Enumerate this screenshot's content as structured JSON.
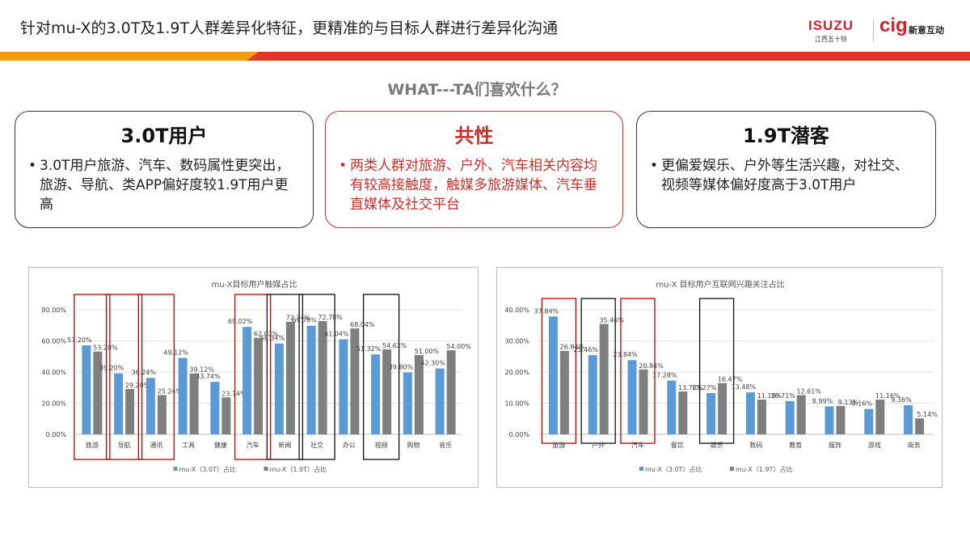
{
  "header": {
    "title": "针对mu-X的3.0T及1.9T人群差异化特征，更精准的与目标人群进行差异化沟通",
    "logo_isuzu": "ISUZU",
    "logo_isuzu_sub": "江西五十铃",
    "logo_cig": "cig",
    "logo_cig_sub": "新意互动"
  },
  "subtitle": "WHAT---TA们喜欢什么？",
  "colors": {
    "accent_red": "#e3342b",
    "accent_orange": "#f39c12",
    "series_30t": "#5b9bd5",
    "series_19t": "#7f7f7f"
  },
  "cards": [
    {
      "title": "3.0T用户",
      "bullet": "•",
      "text": "3.0T用户旅游、汽车、数码属性更突出，旅游、导航、类APP偏好度较1.9T用户更高"
    },
    {
      "title": "共性",
      "bullet": "•",
      "text": "两类人群对旅游、户外、汽车相关内容均有较高接触度，触媒多旅游媒体、汽车垂直媒体及社交平台"
    },
    {
      "title": "1.9T潜客",
      "bullet": "•",
      "text": "更偏爱娱乐、户外等生活兴趣，对社交、视频等媒体偏好度高于3.0T用户"
    }
  ],
  "chart_data": [
    {
      "type": "bar",
      "title": "mu-X目标用户触媒占比",
      "categories": [
        "旅游",
        "导航",
        "通讯",
        "工具",
        "健康",
        "汽车",
        "新闻",
        "社交",
        "办公",
        "视频",
        "购物",
        "音乐"
      ],
      "series": [
        {
          "name": "mu-X（3.0T）占比",
          "values": [
            57.2,
            39.2,
            36.24,
            49.12,
            33.74,
            69.02,
            58.34,
            69.78,
            61.04,
            51.32,
            39.8,
            42.3
          ],
          "labels": [
            "57.20%",
            "39.20%",
            "36.24%",
            "49.12%",
            "33.74%",
            "69.02%",
            "58.34%",
            "69.78%",
            "61.04%",
            "51.32%",
            "39.80%",
            "42.30%"
          ]
        },
        {
          "name": "mu-X（1.9T）占比",
          "values": [
            53.2,
            29.2,
            25.24,
            39.12,
            23.74,
            62.02,
            72.34,
            72.78,
            68.04,
            54.62,
            51.0,
            54.0
          ],
          "labels": [
            "53.20%",
            "29.20%",
            "25.24%",
            "39.12%",
            "23.74%",
            "62.02%",
            "72.34%",
            "72.78%",
            "68.04%",
            "54.62%",
            "51.00%",
            "54.00%"
          ]
        }
      ],
      "y_ticks": [
        "0.00%",
        "20.00%",
        "40.00%",
        "60.00%",
        "80.00%"
      ],
      "ylim": [
        0,
        80
      ],
      "grid": true,
      "legend_position": "bottom",
      "highlight_red": [
        "旅游",
        "导航",
        "通讯",
        "汽车"
      ],
      "highlight_black": [
        "新闻",
        "社交",
        "视频"
      ],
      "xlabel": "",
      "ylabel": ""
    },
    {
      "type": "bar",
      "title": "mu-X 目标用户互联网兴趣关注占比",
      "categories": [
        "旅游",
        "户外",
        "汽车",
        "餐饮",
        "娱乐",
        "数码",
        "教育",
        "服饰",
        "游戏",
        "商务"
      ],
      "series": [
        {
          "name": "mu-X（3.0T）占比",
          "values": [
            37.84,
            25.46,
            23.84,
            17.28,
            13.27,
            13.48,
            10.71,
            8.99,
            8.16,
            9.36
          ],
          "labels": [
            "37.84%",
            "25.46%",
            "23.84%",
            "17.28%",
            "13.27%",
            "13.48%",
            "10.71%",
            "8.99%",
            "8.16%",
            "9.36%"
          ]
        },
        {
          "name": "mu-X（1.9T）占比",
          "values": [
            26.84,
            35.46,
            20.84,
            13.78,
            16.47,
            11.18,
            12.61,
            9.13,
            11.16,
            5.14
          ],
          "labels": [
            "26.84%",
            "35.46%",
            "20.84%",
            "13.78%",
            "16.47%",
            "11.18%",
            "12.61%",
            "9.13%",
            "11.16%",
            "5.14%"
          ]
        }
      ],
      "y_ticks": [
        "0.00%",
        "10.00%",
        "20.00%",
        "30.00%",
        "40.00%"
      ],
      "ylim": [
        0,
        40
      ],
      "grid": true,
      "legend_position": "bottom",
      "highlight_red": [
        "旅游",
        "汽车"
      ],
      "highlight_black": [
        "户外",
        "娱乐"
      ],
      "xlabel": "",
      "ylabel": ""
    }
  ]
}
